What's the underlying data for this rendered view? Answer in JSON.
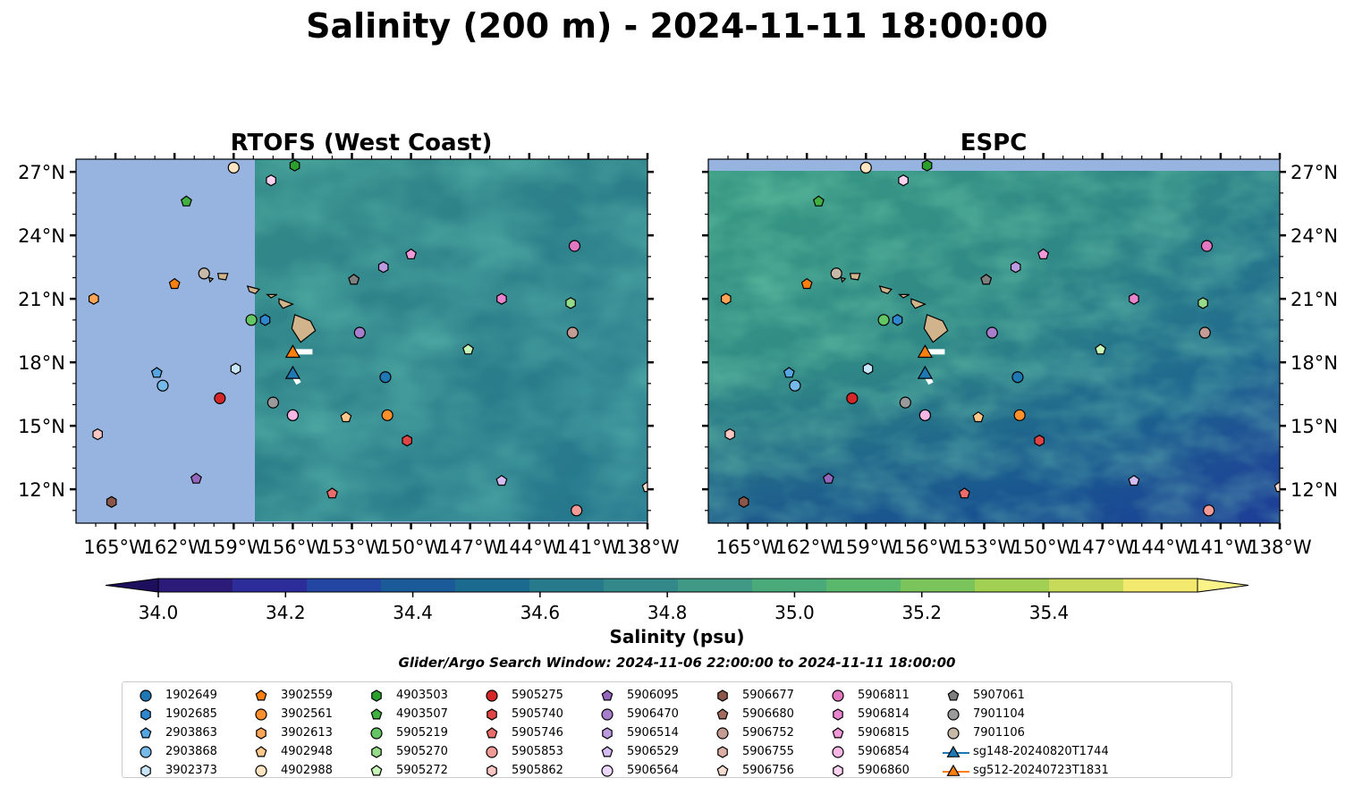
{
  "title": "Salinity (200 m) - 2024-11-11 18:00:00",
  "panels": [
    {
      "title": "RTOFS (West Coast)"
    },
    {
      "title": "ESPC"
    }
  ],
  "x_ticks": [
    "165°W",
    "162°W",
    "159°W",
    "156°W",
    "153°W",
    "150°W",
    "147°W",
    "144°W",
    "141°W",
    "138°W"
  ],
  "y_ticks": [
    "27°N",
    "24°N",
    "21°N",
    "18°N",
    "15°N",
    "12°N"
  ],
  "colorbar": {
    "label": "Salinity (psu)",
    "ticks": [
      "34.0",
      "34.2",
      "34.4",
      "34.6",
      "34.8",
      "35.0",
      "35.2",
      "35.4"
    ],
    "colors": [
      "#2c1b78",
      "#2d2c9b",
      "#2446a3",
      "#1a5a99",
      "#1b6a8f",
      "#277a8c",
      "#33898a",
      "#409984",
      "#4aaa7a",
      "#5ab86c",
      "#7bc45c",
      "#a2d052",
      "#c8da5a",
      "#f2e96e"
    ]
  },
  "search_window": "Glider/Argo Search Window: 2024-11-06 22:00:00 to 2024-11-11 18:00:00",
  "legend": [
    {
      "label": "1902649",
      "marker": "circle",
      "color": "#1f77b4"
    },
    {
      "label": "1902685",
      "marker": "hexagon",
      "color": "#2e86cf"
    },
    {
      "label": "2903863",
      "marker": "pentagon",
      "color": "#55a5e0"
    },
    {
      "label": "2903868",
      "marker": "circle",
      "color": "#76b9e8"
    },
    {
      "label": "3902373",
      "marker": "hexagon",
      "color": "#c9e6f8"
    },
    {
      "label": "3902559",
      "marker": "pentagon",
      "color": "#ff7f0e"
    },
    {
      "label": "3902561",
      "marker": "circle",
      "color": "#ff8f2a"
    },
    {
      "label": "3902613",
      "marker": "hexagon",
      "color": "#ffa555"
    },
    {
      "label": "4902948",
      "marker": "pentagon",
      "color": "#ffc78a"
    },
    {
      "label": "4902988",
      "marker": "circle",
      "color": "#ffe4c2"
    },
    {
      "label": "4903503",
      "marker": "hexagon",
      "color": "#2ca02c"
    },
    {
      "label": "4903507",
      "marker": "pentagon",
      "color": "#41b041"
    },
    {
      "label": "5905219",
      "marker": "circle",
      "color": "#64c564"
    },
    {
      "label": "5905270",
      "marker": "hexagon",
      "color": "#95db8a"
    },
    {
      "label": "5905272",
      "marker": "pentagon",
      "color": "#c8f5b8"
    },
    {
      "label": "5905275",
      "marker": "circle",
      "color": "#d62728"
    },
    {
      "label": "5905740",
      "marker": "hexagon",
      "color": "#e04444"
    },
    {
      "label": "5905746",
      "marker": "pentagon",
      "color": "#ea6d6b"
    },
    {
      "label": "5905853",
      "marker": "circle",
      "color": "#f29a96"
    },
    {
      "label": "5905862",
      "marker": "hexagon",
      "color": "#fcc6c2"
    },
    {
      "label": "5906095",
      "marker": "pentagon",
      "color": "#9467bd"
    },
    {
      "label": "5906470",
      "marker": "circle",
      "color": "#a67ecb"
    },
    {
      "label": "5906514",
      "marker": "hexagon",
      "color": "#bb9ae0"
    },
    {
      "label": "5906529",
      "marker": "pentagon",
      "color": "#d5bdf2"
    },
    {
      "label": "5906564",
      "marker": "circle",
      "color": "#ecd8fc"
    },
    {
      "label": "5906677",
      "marker": "hexagon",
      "color": "#8c564b"
    },
    {
      "label": "5906680",
      "marker": "pentagon",
      "color": "#a16b5f"
    },
    {
      "label": "5906752",
      "marker": "circle",
      "color": "#c49c94"
    },
    {
      "label": "5906755",
      "marker": "hexagon",
      "color": "#dcaea4"
    },
    {
      "label": "5906756",
      "marker": "pentagon",
      "color": "#f7dcd2"
    },
    {
      "label": "5906811",
      "marker": "circle",
      "color": "#e377c2"
    },
    {
      "label": "5906814",
      "marker": "hexagon",
      "color": "#ea84cf"
    },
    {
      "label": "5906815",
      "marker": "pentagon",
      "color": "#f29ad9"
    },
    {
      "label": "5906854",
      "marker": "circle",
      "color": "#f7b6e4"
    },
    {
      "label": "5906860",
      "marker": "hexagon",
      "color": "#fcd2f0"
    },
    {
      "label": "5907061",
      "marker": "pentagon",
      "color": "#7f7f7f"
    },
    {
      "label": "7901104",
      "marker": "circle",
      "color": "#9a9a9a"
    },
    {
      "label": "7901106",
      "marker": "circle",
      "color": "#c7b8a8"
    },
    {
      "label": "sg148-20240820T1744",
      "marker": "triangle",
      "color": "#1f77b4"
    },
    {
      "label": "sg512-20240723T1831",
      "marker": "triangle",
      "color": "#ff7f0e"
    }
  ],
  "chart_data": {
    "type": "map",
    "variable": "Salinity (200 m)",
    "units": "psu",
    "datetime": "2024-11-11 18:00:00",
    "extent": {
      "lon": [
        -167,
        -138
      ],
      "lat": [
        10.4,
        27.6
      ]
    },
    "color_range": [
      34.0,
      35.4
    ],
    "panels": [
      "RTOFS (West Coast)",
      "ESPC"
    ],
    "floats": [
      {
        "id": "1902649",
        "lon": -151.3,
        "lat": 17.3
      },
      {
        "id": "1902685",
        "lon": -157.4,
        "lat": 20.0
      },
      {
        "id": "2903863",
        "lon": -162.9,
        "lat": 17.5
      },
      {
        "id": "2903868",
        "lon": -162.6,
        "lat": 16.9
      },
      {
        "id": "3902373",
        "lon": -158.9,
        "lat": 17.7
      },
      {
        "id": "3902559",
        "lon": -162.0,
        "lat": 21.7
      },
      {
        "id": "3902561",
        "lon": -151.2,
        "lat": 15.5
      },
      {
        "id": "3902613",
        "lon": -166.1,
        "lat": 21.0
      },
      {
        "id": "4902948",
        "lon": -153.3,
        "lat": 15.4
      },
      {
        "id": "4902988",
        "lon": -159.0,
        "lat": 27.2
      },
      {
        "id": "4903503",
        "lon": -155.9,
        "lat": 27.3
      },
      {
        "id": "4903507",
        "lon": -161.4,
        "lat": 25.6
      },
      {
        "id": "5905219",
        "lon": -158.1,
        "lat": 20.0
      },
      {
        "id": "5905270",
        "lon": -141.9,
        "lat": 20.8
      },
      {
        "id": "5905272",
        "lon": -147.1,
        "lat": 18.6
      },
      {
        "id": "5905275",
        "lon": -159.7,
        "lat": 16.3
      },
      {
        "id": "5905740",
        "lon": -150.2,
        "lat": 14.3
      },
      {
        "id": "5905746",
        "lon": -154.0,
        "lat": 11.8
      },
      {
        "id": "5905853",
        "lon": -141.6,
        "lat": 11.0
      },
      {
        "id": "5905862",
        "lon": -165.9,
        "lat": 14.6
      },
      {
        "id": "5906095",
        "lon": -160.9,
        "lat": 12.5
      },
      {
        "id": "5906470",
        "lon": -152.6,
        "lat": 19.4
      },
      {
        "id": "5906514",
        "lon": -151.4,
        "lat": 22.5
      },
      {
        "id": "5906529",
        "lon": -145.4,
        "lat": 12.4
      },
      {
        "id": "5906564",
        "lon": -156.0,
        "lat": 15.5
      },
      {
        "id": "5906677",
        "lon": -165.2,
        "lat": 11.4
      },
      {
        "id": "5906680",
        "lon": -152.9,
        "lat": 21.9
      },
      {
        "id": "5906752",
        "lon": -141.8,
        "lat": 19.4
      },
      {
        "id": "5906755",
        "lon": -160.5,
        "lat": 22.2
      },
      {
        "id": "5906756",
        "lon": -138.0,
        "lat": 12.1
      },
      {
        "id": "5906811",
        "lon": -141.7,
        "lat": 23.5
      },
      {
        "id": "5906814",
        "lon": -145.4,
        "lat": 21.0
      },
      {
        "id": "5906815",
        "lon": -150.0,
        "lat": 23.1
      },
      {
        "id": "5906854",
        "lon": -156.0,
        "lat": 15.5
      },
      {
        "id": "5906860",
        "lon": -157.1,
        "lat": 26.6
      },
      {
        "id": "5907061",
        "lon": -152.9,
        "lat": 21.9
      },
      {
        "id": "7901104",
        "lon": -157.0,
        "lat": 16.1
      },
      {
        "id": "7901106",
        "lon": -160.5,
        "lat": 22.2
      }
    ],
    "gliders": [
      {
        "id": "sg148-20240820T1744",
        "lon": -156.0,
        "lat": 17.5,
        "track_end": [
          -155.7,
          17.0
        ]
      },
      {
        "id": "sg512-20240723T1831",
        "lon": -156.0,
        "lat": 18.5,
        "track_end": [
          -155.0,
          18.5
        ]
      }
    ]
  }
}
